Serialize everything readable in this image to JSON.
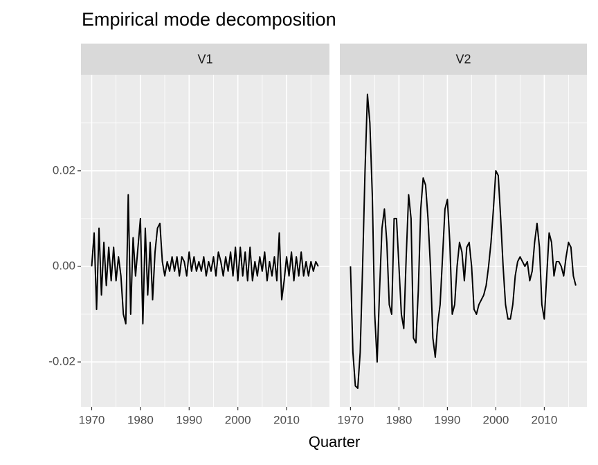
{
  "chart_data": {
    "type": "line",
    "title": "Empirical mode decomposition",
    "x_label": "Quarter",
    "x": [
      1970,
      1970.5,
      1971,
      1971.5,
      1972,
      1972.5,
      1973,
      1973.5,
      1974,
      1974.5,
      1975,
      1975.5,
      1976,
      1976.5,
      1977,
      1977.5,
      1978,
      1978.5,
      1979,
      1979.5,
      1980,
      1980.5,
      1981,
      1981.5,
      1982,
      1982.5,
      1983,
      1983.5,
      1984,
      1984.5,
      1985,
      1985.5,
      1986,
      1986.5,
      1987,
      1987.5,
      1988,
      1988.5,
      1989,
      1989.5,
      1990,
      1990.5,
      1991,
      1991.5,
      1992,
      1992.5,
      1993,
      1993.5,
      1994,
      1994.5,
      1995,
      1995.5,
      1996,
      1996.5,
      1997,
      1997.5,
      1998,
      1998.5,
      1999,
      1999.5,
      2000,
      2000.5,
      2001,
      2001.5,
      2002,
      2002.5,
      2003,
      2003.5,
      2004,
      2004.5,
      2005,
      2005.5,
      2006,
      2006.5,
      2007,
      2007.5,
      2008,
      2008.5,
      2009,
      2009.5,
      2010,
      2010.5,
      2011,
      2011.5,
      2012,
      2012.5,
      2013,
      2013.5,
      2014,
      2014.5,
      2015,
      2015.5,
      2016,
      2016.5
    ],
    "series": [
      {
        "name": "V1",
        "color": "#000000",
        "values": [
          0,
          0.007,
          -0.009,
          0.008,
          -0.006,
          0.005,
          -0.004,
          0.004,
          -0.003,
          0.004,
          -0.003,
          0.002,
          -0.002,
          -0.01,
          -0.012,
          0.015,
          -0.01,
          0.006,
          -0.002,
          0.004,
          0.01,
          -0.012,
          0.008,
          -0.006,
          0.005,
          -0.007,
          0.003,
          0.008,
          0.009,
          0.001,
          -0.002,
          0.001,
          -0.001,
          0.002,
          -0.001,
          0.002,
          -0.002,
          0.002,
          0.001,
          -0.002,
          0.003,
          -0.001,
          0.002,
          -0.001,
          0.001,
          -0.001,
          0.002,
          -0.002,
          0.001,
          -0.001,
          0.002,
          -0.002,
          0.003,
          0.001,
          -0.002,
          0.002,
          -0.001,
          0.003,
          -0.002,
          0.004,
          -0.003,
          0.004,
          -0.002,
          0.003,
          -0.003,
          0.004,
          -0.003,
          0.001,
          -0.002,
          0.002,
          -0.001,
          0.003,
          -0.003,
          0.001,
          -0.002,
          0.002,
          -0.003,
          0.007,
          -0.007,
          -0.003,
          0.002,
          -0.002,
          0.003,
          -0.003,
          0.002,
          -0.002,
          0.003,
          -0.002,
          0.001,
          -0.002,
          0.001,
          -0.001,
          0.001,
          0
        ]
      },
      {
        "name": "V2",
        "color": "#000000",
        "values": [
          0,
          -0.018,
          -0.025,
          -0.0255,
          -0.018,
          0,
          0.02,
          0.036,
          0.03,
          0.015,
          -0.01,
          -0.02,
          -0.005,
          0.008,
          0.012,
          0.005,
          -0.008,
          -0.01,
          0.01,
          0.01,
          0,
          -0.01,
          -0.013,
          0.002,
          0.015,
          0.01,
          -0.015,
          -0.016,
          -0.005,
          0.012,
          0.0185,
          0.017,
          0.01,
          0,
          -0.015,
          -0.019,
          -0.012,
          -0.008,
          0.002,
          0.012,
          0.014,
          0.005,
          -0.01,
          -0.008,
          0,
          0.005,
          0.003,
          -0.003,
          0.004,
          0.005,
          0,
          -0.009,
          -0.01,
          -0.008,
          -0.007,
          -0.006,
          -0.004,
          0,
          0.005,
          0.012,
          0.02,
          0.019,
          0.01,
          0,
          -0.008,
          -0.011,
          -0.011,
          -0.008,
          -0.002,
          0.001,
          0.002,
          0.001,
          0,
          0.001,
          -0.003,
          -0.001,
          0.005,
          0.009,
          0.004,
          -0.008,
          -0.011,
          -0.002,
          0.007,
          0.005,
          -0.002,
          0.001,
          0.001,
          0,
          -0.002,
          0.002,
          0.005,
          0.004,
          -0.002,
          -0.004
        ]
      }
    ],
    "xlim": [
      1967.8,
      2018.8
    ],
    "xticks": [
      1970,
      1980,
      1990,
      2000,
      2010
    ],
    "xminor": [
      1975,
      1985,
      1995,
      2005,
      2015
    ],
    "ylim": [
      -0.0294,
      0.0401
    ],
    "yticks": [
      -0.02,
      {
        "value": 0,
        "label": "0.00"
      },
      0.02
    ],
    "yminor": [
      -0.01,
      0.01,
      0.03
    ],
    "grid": true
  }
}
